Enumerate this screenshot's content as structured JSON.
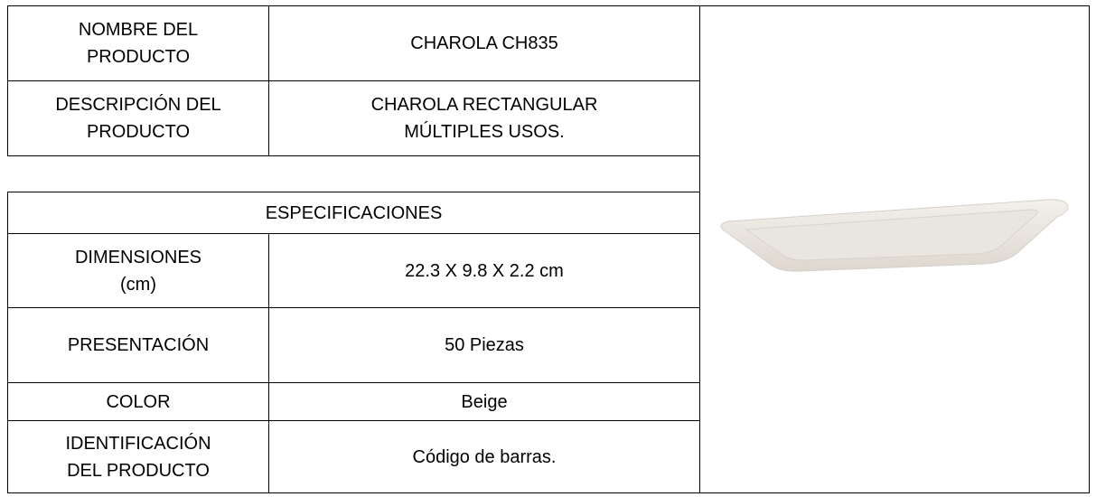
{
  "product": {
    "rows": [
      [
        "NOMBRE DEL\nPRODUCTO",
        "CHAROLA CH835"
      ],
      [
        "DESCRIPCIÓN  DEL\nPRODUCTO",
        "CHAROLA RECTANGULAR\nMÚLTIPLES USOS."
      ]
    ]
  },
  "specifications": {
    "title": "ESPECIFICACIONES",
    "rows": [
      [
        "DIMENSIONES\n(cm)",
        "22.3 X 9.8 X 2.2 cm"
      ],
      [
        "PRESENTACIÓN",
        "50 Piezas"
      ],
      [
        "COLOR",
        "Beige"
      ],
      [
        "IDENTIFICACIÓN\nDEL PRODUCTO",
        "Código de barras."
      ]
    ]
  }
}
